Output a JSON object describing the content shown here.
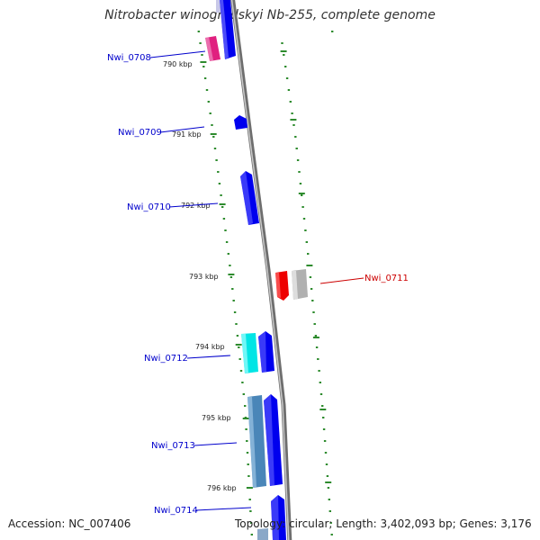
{
  "title": "Nitrobacter winogradskyi Nb-255, complete genome",
  "accession": "Accession: NC_007406",
  "summary": "Topology: circular; Length: 3,402,093 bp; Genes: 3,176",
  "colors": {
    "label_blue": "#0000cc",
    "label_red": "#cc0000",
    "backbone": "#8a8a8a",
    "gc_dots": "#2e8b2e",
    "gene_blue": "#0000ee",
    "gene_magenta": "#e0207f",
    "gene_cyan": "#00e5e5",
    "gene_steel": "#4a86b8",
    "gene_red": "#ee0000",
    "gene_gray": "#b0b0b0"
  },
  "ticks": [
    "790 kbp",
    "791 kbp",
    "792 kbp",
    "793 kbp",
    "794 kbp",
    "795 kbp",
    "796 kbp"
  ],
  "genes": [
    {
      "label": "Nwi_0708",
      "color": "magenta",
      "strand": "left"
    },
    {
      "label": "Nwi_0709",
      "color": "blue",
      "strand": "left"
    },
    {
      "label": "Nwi_0710",
      "color": "blue",
      "strand": "left"
    },
    {
      "label": "Nwi_0711",
      "color": "red",
      "strand": "right"
    },
    {
      "label": "Nwi_0712",
      "color": "cyan",
      "strand": "left"
    },
    {
      "label": "Nwi_0713",
      "color": "steel",
      "strand": "left"
    },
    {
      "label": "Nwi_0714",
      "color": "blue",
      "strand": "left"
    }
  ]
}
